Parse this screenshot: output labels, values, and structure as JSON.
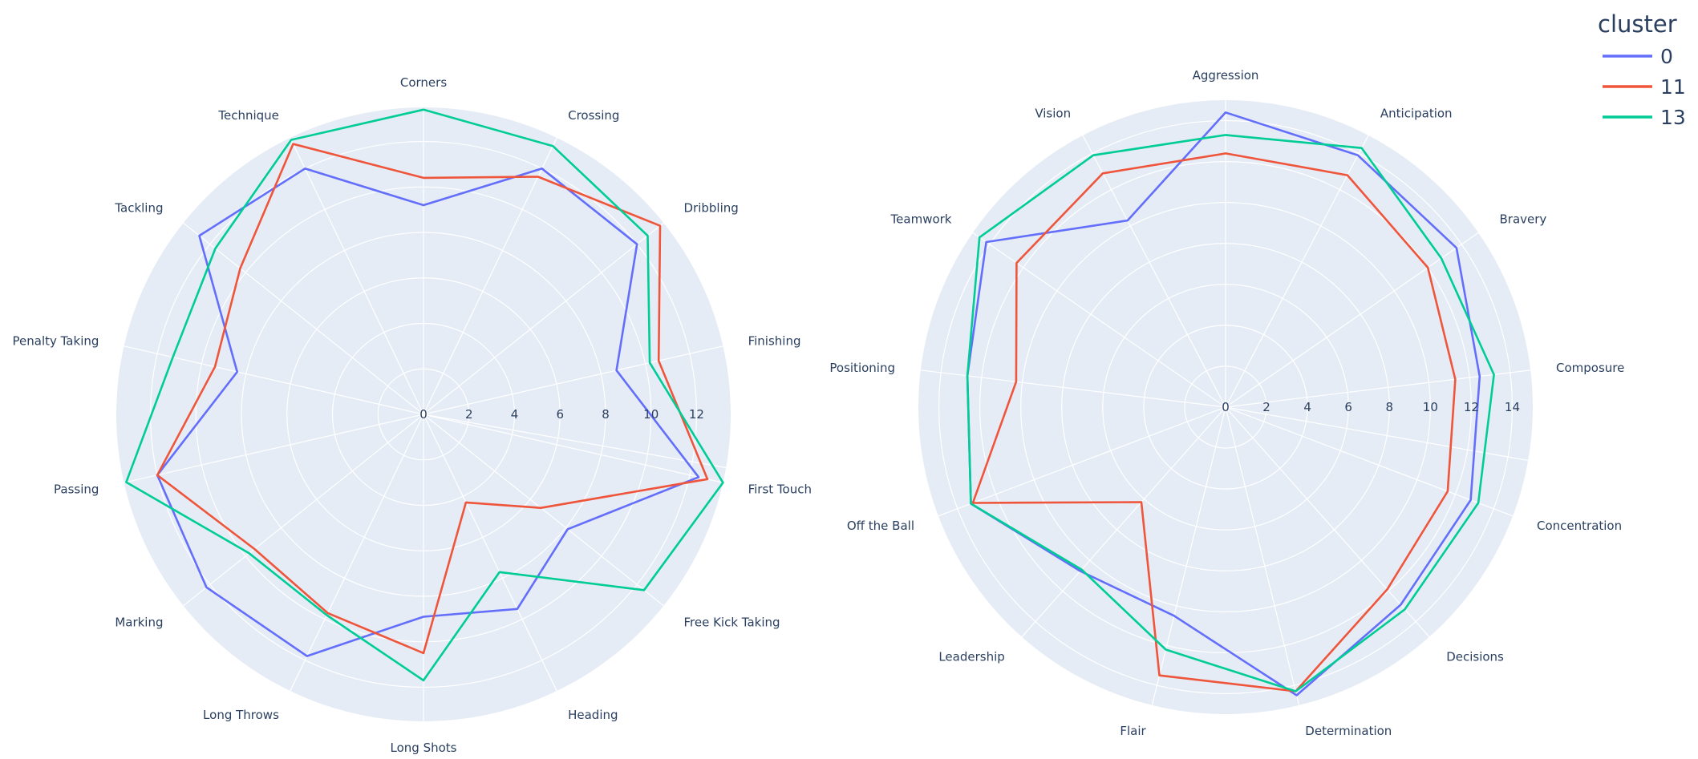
{
  "legend": {
    "title": "cluster",
    "items": [
      {
        "label": "0",
        "color": "#636efa"
      },
      {
        "label": "11",
        "color": "#ef553b"
      },
      {
        "label": "13",
        "color": "#00cc96"
      }
    ]
  },
  "colors": {
    "polar_bg": "#e5ecf6",
    "grid": "#ffffff",
    "text": "#2a3f5f"
  },
  "chart_data": [
    {
      "type": "radar",
      "radial_range": [
        0,
        13.5
      ],
      "radial_ticks": [
        0,
        2,
        4,
        6,
        8,
        10,
        12
      ],
      "tick_labels": [
        "0",
        "2",
        "4",
        "6",
        "8",
        "10",
        "12"
      ],
      "axes": [
        "Corners",
        "Crossing",
        "Dribbling",
        "Finishing",
        "First Touch",
        "Free Kick Taking",
        "Heading",
        "Long Shots",
        "Long Throws",
        "Marking",
        "Passing",
        "Penalty Taking",
        "Tackling",
        "Technique"
      ],
      "series": [
        {
          "name": "0",
          "color": "#636efa",
          "values": [
            9.2,
            12.0,
            12.0,
            8.7,
            12.4,
            8.1,
            9.5,
            8.9,
            11.8,
            12.2,
            12.0,
            8.4,
            12.6,
            12.0
          ]
        },
        {
          "name": "11",
          "color": "#ef553b",
          "values": [
            10.4,
            11.6,
            13.3,
            10.6,
            12.8,
            6.6,
            4.3,
            10.5,
            9.7,
            9.5,
            12.0,
            9.4,
            10.3,
            13.2
          ]
        },
        {
          "name": "13",
          "color": "#00cc96",
          "values": [
            13.4,
            13.1,
            12.6,
            10.2,
            13.5,
            12.4,
            7.7,
            11.7,
            9.8,
            9.8,
            13.4,
            11.3,
            11.7,
            13.4
          ]
        }
      ]
    },
    {
      "type": "radar",
      "radial_range": [
        0,
        15
      ],
      "radial_ticks": [
        0,
        2,
        4,
        6,
        8,
        10,
        12,
        14
      ],
      "tick_labels": [
        "0",
        "2",
        "4",
        "6",
        "8",
        "10",
        "12",
        "14"
      ],
      "axes": [
        "Aggression",
        "Anticipation",
        "Bravery",
        "Composure",
        "Concentration",
        "Decisions",
        "Determination",
        "Flair",
        "Leadership",
        "Off the Ball",
        "Positioning",
        "Teamwork",
        "Vision"
      ],
      "series": [
        {
          "name": "0",
          "color": "#636efa",
          "values": [
            14.4,
            13.9,
            13.7,
            12.5,
            12.8,
            12.9,
            14.5,
            10.5,
            10.7,
            13.3,
            12.7,
            14.2,
            10.3
          ]
        },
        {
          "name": "11",
          "color": "#ef553b",
          "values": [
            12.4,
            12.8,
            12.0,
            11.3,
            11.6,
            11.9,
            14.3,
            13.5,
            6.2,
            13.2,
            10.3,
            12.4,
            12.9
          ]
        },
        {
          "name": "13",
          "color": "#00cc96",
          "values": [
            13.3,
            14.3,
            12.8,
            13.2,
            13.2,
            13.2,
            14.3,
            12.2,
            10.6,
            13.3,
            12.7,
            14.6,
            13.9
          ]
        }
      ]
    }
  ]
}
